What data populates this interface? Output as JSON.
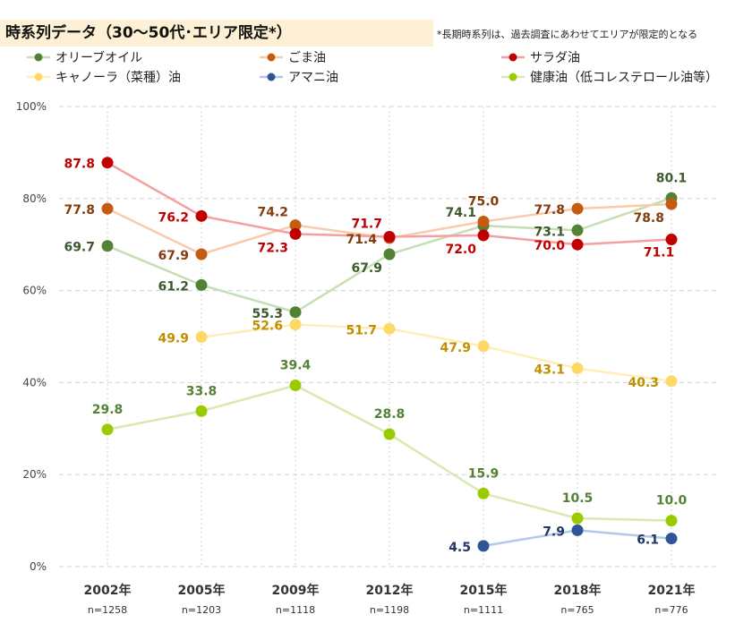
{
  "chart_data": {
    "type": "line",
    "title": "時系列データ（30～50代･エリア限定*）",
    "note": "*長期時系列は、過去調査にあわせてエリアが限定的となる",
    "categories": [
      "2002年",
      "2005年",
      "2009年",
      "2012年",
      "2015年",
      "2018年",
      "2021年"
    ],
    "sample_sizes": [
      "n=1258",
      "n=1203",
      "n=1118",
      "n=1198",
      "n=1111",
      "n=765",
      "n=776"
    ],
    "ylim": [
      0,
      100
    ],
    "yticks": [
      "0%",
      "20%",
      "40%",
      "60%",
      "80%",
      "100%"
    ],
    "grid": true,
    "legend_position": "top",
    "series": [
      {
        "name": "オリーブオイル",
        "color": "#548235",
        "line": "#c5dfb4",
        "label_color": "#3d5a2c",
        "values": [
          69.7,
          61.2,
          55.3,
          67.9,
          74.1,
          73.1,
          80.1
        ]
      },
      {
        "name": "ごま油",
        "color": "#c55a11",
        "line": "#f8cbad",
        "label_color": "#843c0c",
        "values": [
          77.8,
          67.9,
          74.2,
          71.4,
          75.0,
          77.8,
          78.8
        ]
      },
      {
        "name": "サラダ油",
        "color": "#c00000",
        "line": "#f4a0a0",
        "label_color": "#c00000",
        "values": [
          87.8,
          76.2,
          72.3,
          71.7,
          72.0,
          70.0,
          71.1
        ]
      },
      {
        "name": "キャノーラ（菜種）油",
        "color": "#ffd966",
        "line": "#ffedb8",
        "label_color": "#bf9000",
        "values": [
          null,
          49.9,
          52.6,
          51.7,
          47.9,
          43.1,
          40.3
        ]
      },
      {
        "name": "アマニ油",
        "color": "#2f5597",
        "line": "#b4c7e7",
        "label_color": "#1f3864",
        "values": [
          null,
          null,
          null,
          null,
          4.5,
          7.9,
          6.1
        ]
      },
      {
        "name": "健康油（低コレステロール油等）",
        "color": "#99cc00",
        "line": "#dbe9b0",
        "label_color": "#548235",
        "values": [
          29.8,
          33.8,
          39.4,
          28.8,
          15.9,
          10.5,
          10.0
        ]
      }
    ]
  }
}
